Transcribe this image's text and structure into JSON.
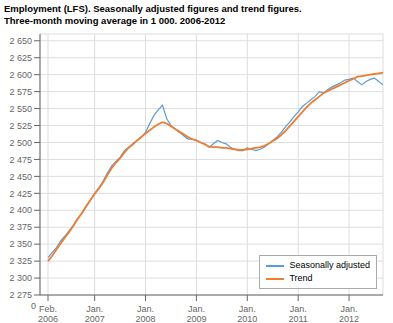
{
  "chart_data": {
    "type": "line",
    "title": "Employment (LFS). Seasonally adjusted figures and trend figures.",
    "subtitle": "Three-month moving average in 1 000. 2006-2012",
    "annotation": "0",
    "categories": [
      "Feb.\n2006",
      null,
      null,
      null,
      null,
      null,
      null,
      null,
      null,
      null,
      null,
      "Jan.\n2007",
      null,
      null,
      null,
      null,
      null,
      null,
      null,
      null,
      null,
      null,
      null,
      "Jan.\n2008",
      null,
      null,
      null,
      null,
      null,
      null,
      null,
      null,
      null,
      null,
      null,
      "Jan.\n2009",
      null,
      null,
      null,
      null,
      null,
      null,
      null,
      null,
      null,
      null,
      null,
      "Jan.\n2010",
      null,
      null,
      null,
      null,
      null,
      null,
      null,
      null,
      null,
      null,
      null,
      "Jan.\n2011",
      null,
      null,
      null,
      null,
      null,
      null,
      null,
      null,
      null,
      null,
      null,
      "Jan.\n2012",
      null,
      null,
      null,
      null,
      null,
      null,
      null,
      null
    ],
    "series": [
      {
        "name": "Seasonally adjusted",
        "color": "#5b9bd5",
        "values": [
          2330,
          2338,
          2345,
          2355,
          2362,
          2370,
          2378,
          2388,
          2395,
          2405,
          2415,
          2425,
          2433,
          2443,
          2455,
          2465,
          2472,
          2478,
          2488,
          2493,
          2498,
          2503,
          2508,
          2515,
          2528,
          2540,
          2548,
          2555,
          2535,
          2525,
          2520,
          2515,
          2510,
          2505,
          2505,
          2503,
          2500,
          2498,
          2493,
          2498,
          2503,
          2500,
          2498,
          2493,
          2490,
          2488,
          2488,
          2492,
          2490,
          2488,
          2490,
          2493,
          2498,
          2503,
          2508,
          2515,
          2523,
          2530,
          2538,
          2545,
          2553,
          2558,
          2563,
          2568,
          2575,
          2573,
          2578,
          2582,
          2585,
          2588,
          2592,
          2593,
          2595,
          2590,
          2585,
          2590,
          2593,
          2595,
          2590,
          2585
        ]
      },
      {
        "name": "Trend",
        "color": "#ed7d31",
        "values": [
          2325,
          2333,
          2342,
          2351,
          2360,
          2368,
          2377,
          2387,
          2396,
          2406,
          2415,
          2424,
          2432,
          2441,
          2452,
          2462,
          2470,
          2477,
          2485,
          2492,
          2497,
          2503,
          2508,
          2513,
          2518,
          2523,
          2527,
          2530,
          2528,
          2524,
          2520,
          2516,
          2512,
          2508,
          2505,
          2503,
          2500,
          2497,
          2494,
          2493,
          2493,
          2492,
          2492,
          2491,
          2490,
          2489,
          2489,
          2490,
          2491,
          2492,
          2493,
          2495,
          2498,
          2502,
          2506,
          2511,
          2517,
          2524,
          2531,
          2538,
          2545,
          2552,
          2558,
          2563,
          2568,
          2573,
          2576,
          2579,
          2582,
          2585,
          2588,
          2591,
          2594,
          2597,
          2598,
          2599,
          2600,
          2601,
          2602,
          2603
        ]
      }
    ],
    "ylim": [
      2275,
      2660
    ],
    "yticks": [
      {
        "value": 2275,
        "label": "2 275"
      },
      {
        "value": 2300,
        "label": "2 300"
      },
      {
        "value": 2325,
        "label": "2 325"
      },
      {
        "value": 2350,
        "label": "2 350"
      },
      {
        "value": 2375,
        "label": "2 375"
      },
      {
        "value": 2400,
        "label": "2 400"
      },
      {
        "value": 2425,
        "label": "2 425"
      },
      {
        "value": 2450,
        "label": "2 450"
      },
      {
        "value": 2475,
        "label": "2 475"
      },
      {
        "value": 2500,
        "label": "2 500"
      },
      {
        "value": 2525,
        "label": "2 525"
      },
      {
        "value": 2550,
        "label": "2 550"
      },
      {
        "value": 2575,
        "label": "2 575"
      },
      {
        "value": 2600,
        "label": "2 600"
      },
      {
        "value": 2625,
        "label": "2 625"
      },
      {
        "value": 2650,
        "label": "2 650"
      }
    ],
    "grid": true,
    "legend": "lower right"
  }
}
